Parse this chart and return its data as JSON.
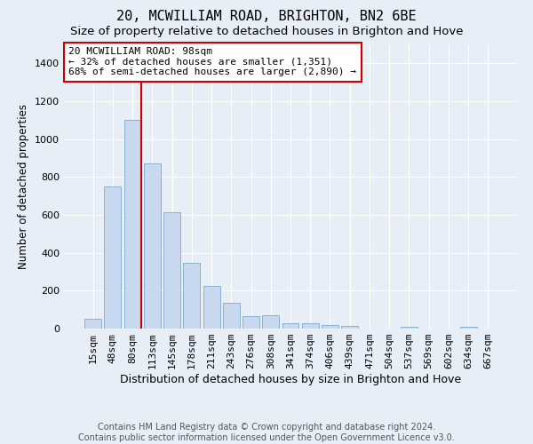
{
  "title": "20, MCWILLIAM ROAD, BRIGHTON, BN2 6BE",
  "subtitle": "Size of property relative to detached houses in Brighton and Hove",
  "xlabel": "Distribution of detached houses by size in Brighton and Hove",
  "ylabel": "Number of detached properties",
  "footer_line1": "Contains HM Land Registry data © Crown copyright and database right 2024.",
  "footer_line2": "Contains public sector information licensed under the Open Government Licence v3.0.",
  "bar_labels": [
    "15sqm",
    "48sqm",
    "80sqm",
    "113sqm",
    "145sqm",
    "178sqm",
    "211sqm",
    "243sqm",
    "276sqm",
    "308sqm",
    "341sqm",
    "374sqm",
    "406sqm",
    "439sqm",
    "471sqm",
    "504sqm",
    "537sqm",
    "569sqm",
    "602sqm",
    "634sqm",
    "667sqm"
  ],
  "bar_values": [
    50,
    750,
    1100,
    870,
    615,
    345,
    225,
    135,
    65,
    70,
    30,
    30,
    20,
    12,
    0,
    0,
    10,
    0,
    0,
    10,
    0
  ],
  "bar_color": "#c8d8ee",
  "bar_edge_color": "#7aaad0",
  "bar_edge_width": 0.6,
  "vline_color": "#cc0000",
  "vline_x": 2.425,
  "annotation_line1": "20 MCWILLIAM ROAD: 98sqm",
  "annotation_line2": "← 32% of detached houses are smaller (1,351)",
  "annotation_line3": "68% of semi-detached houses are larger (2,890) →",
  "annotation_box_edgecolor": "#cc0000",
  "ylim": [
    0,
    1500
  ],
  "ylim_display": 1450,
  "yticks": [
    0,
    200,
    400,
    600,
    800,
    1000,
    1200,
    1400
  ],
  "background_color": "#e8eef5",
  "grid_color": "#ffffff",
  "title_fontsize": 11,
  "subtitle_fontsize": 9.5,
  "annotation_fontsize": 8,
  "footer_fontsize": 7,
  "ylabel_fontsize": 8.5,
  "xlabel_fontsize": 9
}
